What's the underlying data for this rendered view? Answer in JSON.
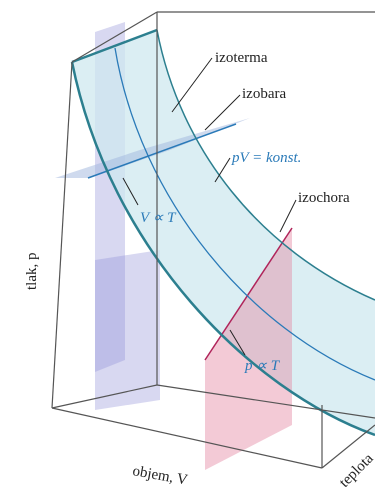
{
  "annotations": {
    "isotherm": "izoterma",
    "isobar": "izobara",
    "law": "pV = konst.",
    "isobar_law": "V ∝ T",
    "isochore": "izochora",
    "isochore_law": "p ∝ T"
  },
  "axes": {
    "pressure": "tlak, p",
    "volume": "objem, V",
    "temperature": "teplota"
  }
}
